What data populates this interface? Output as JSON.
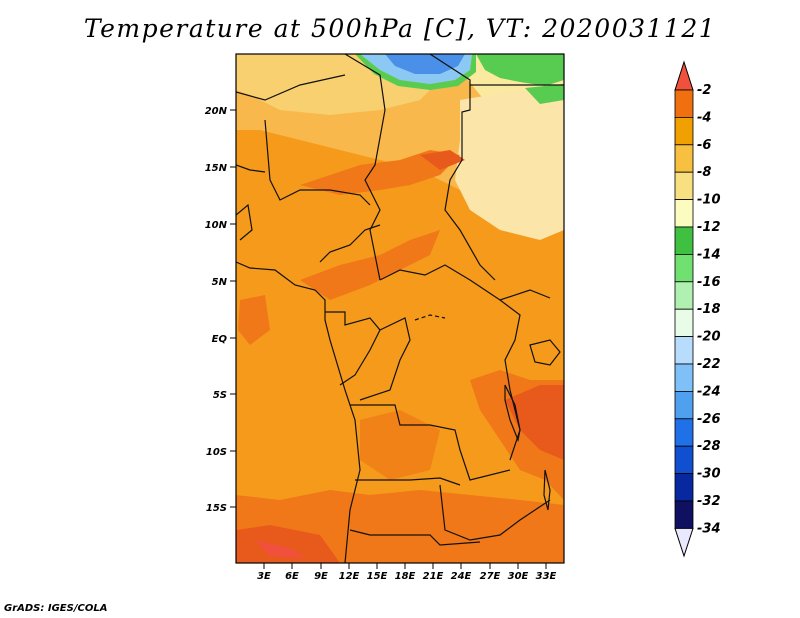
{
  "title": "Temperature at 500hPa [C], VT: 2020031121",
  "credit": "GrADS: IGES/COLA",
  "lon_ticks": [
    "3E",
    "6E",
    "9E",
    "12E",
    "15E",
    "18E",
    "21E",
    "24E",
    "27E",
    "30E",
    "33E"
  ],
  "lat_ticks": [
    "20N",
    "15N",
    "10N",
    "5N",
    "EQ",
    "5S",
    "10S",
    "15S"
  ],
  "colorbar": {
    "labels": [
      "-2",
      "-4",
      "-6",
      "-8",
      "-10",
      "-12",
      "-14",
      "-16",
      "-18",
      "-20",
      "-22",
      "-24",
      "-26",
      "-28",
      "-30",
      "-32",
      "-34"
    ],
    "colors": [
      "#f0503c",
      "#f07010",
      "#f0a000",
      "#f8c040",
      "#f8e080",
      "#fcfcc0",
      "#40c040",
      "#70e070",
      "#b0f0b0",
      "#e8fce8",
      "#b8dcfc",
      "#80c0f8",
      "#50a0f0",
      "#2070e8",
      "#1050d0",
      "#0828a0",
      "#101060",
      "#e8e8ff"
    ]
  },
  "map_colors": {
    "lighter_orange": "#f8a830",
    "main_orange": "#f59a1a",
    "dark_orange": "#f07818",
    "red_orange": "#e85a1c",
    "pale_yellow": "#fce9a0",
    "yellow": "#f8d070",
    "green": "#58cc50",
    "light_blue": "#8cc8f4",
    "blue": "#4a90e8"
  }
}
